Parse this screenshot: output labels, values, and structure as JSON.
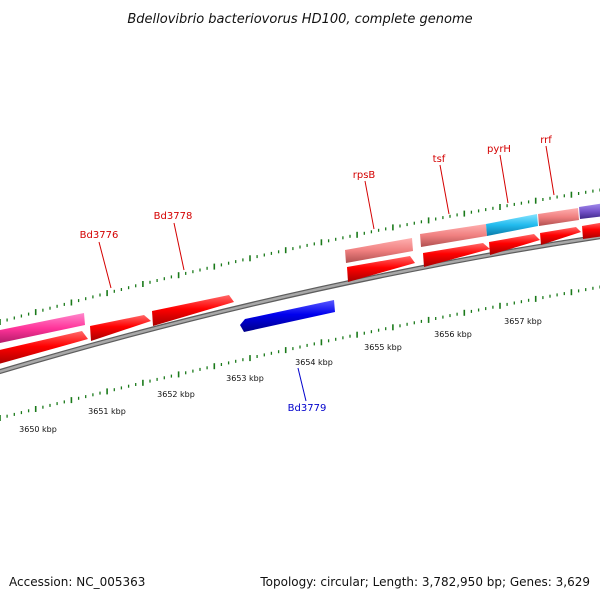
{
  "title": "Bdellovibrio bacteriovorus HD100, complete genome",
  "footer": {
    "accession": "Accession: NC_005363",
    "summary": "Topology: circular; Length: 3,782,950 bp; Genes: 3,629"
  },
  "scale_labels": [
    "3650 kbp",
    "3651 kbp",
    "3652 kbp",
    "3653 kbp",
    "3654 kbp",
    "3655 kbp",
    "3656 kbp",
    "3657 kbp"
  ],
  "gene_labels": [
    {
      "text": "Bd3776",
      "strand": "forward"
    },
    {
      "text": "Bd3778",
      "strand": "forward"
    },
    {
      "text": "rpsB",
      "strand": "forward"
    },
    {
      "text": "tsf",
      "strand": "forward"
    },
    {
      "text": "pyrH",
      "strand": "forward"
    },
    {
      "text": "rrf",
      "strand": "forward"
    },
    {
      "text": "Bd3779",
      "strand": "reverse"
    }
  ],
  "colors": {
    "backbone": "#8c8c8c",
    "forward_cds": "#ff0000",
    "reverse_cds": "#0000ee",
    "forward_label": "#d40000",
    "reverse_label": "#0000cc",
    "ticks": "#1a7a1a",
    "cog_pink": "#ff3399",
    "cog_salmon": "#f08080",
    "cog_cyan": "#22bbee",
    "cog_purple": "#7755cc"
  }
}
